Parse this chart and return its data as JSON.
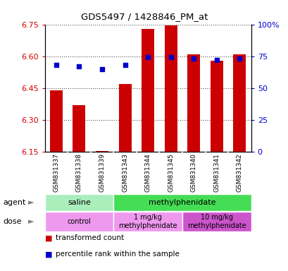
{
  "title": "GDS5497 / 1428846_PM_at",
  "samples": [
    "GSM831337",
    "GSM831338",
    "GSM831339",
    "GSM831343",
    "GSM831344",
    "GSM831345",
    "GSM831340",
    "GSM831341",
    "GSM831342"
  ],
  "bar_values": [
    6.44,
    6.37,
    6.155,
    6.47,
    6.73,
    6.745,
    6.61,
    6.58,
    6.61
  ],
  "percentile_values": [
    68,
    67,
    65,
    68,
    74,
    74,
    73,
    72,
    73
  ],
  "ylim_left": [
    6.15,
    6.75
  ],
  "ylim_right": [
    0,
    100
  ],
  "yticks_left": [
    6.15,
    6.3,
    6.45,
    6.6,
    6.75
  ],
  "yticks_right": [
    0,
    25,
    50,
    75,
    100
  ],
  "bar_color": "#cc0000",
  "dot_color": "#0000cc",
  "bar_width": 0.55,
  "agent_groups": [
    {
      "text": "saline",
      "start": 0,
      "end": 2,
      "color": "#aaeebb"
    },
    {
      "text": "methylphenidate",
      "start": 3,
      "end": 8,
      "color": "#44dd55"
    }
  ],
  "dose_groups": [
    {
      "text": "control",
      "start": 0,
      "end": 2,
      "color": "#ee99ee"
    },
    {
      "text": "1 mg/kg\nmethylphenidate",
      "start": 3,
      "end": 5,
      "color": "#ee99ee"
    },
    {
      "text": "10 mg/kg\nmethylphenidate",
      "start": 6,
      "end": 8,
      "color": "#cc55cc"
    }
  ],
  "legend_items": [
    {
      "color": "#cc0000",
      "label": "transformed count"
    },
    {
      "color": "#0000cc",
      "label": "percentile rank within the sample"
    }
  ],
  "grid_color": "#555555",
  "background_color": "#ffffff",
  "tick_color_left": "#cc0000",
  "tick_color_right": "#0000cc",
  "base_value": 6.15,
  "sample_bg": "#cccccc"
}
